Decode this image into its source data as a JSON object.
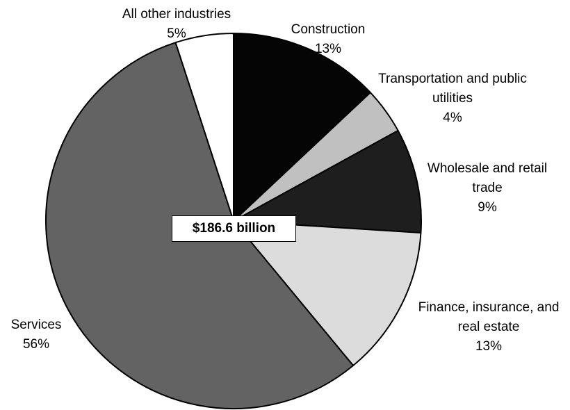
{
  "chart_data": {
    "type": "pie",
    "center_label": "$186.6 billion",
    "start_angle_deg": 0,
    "direction": "clockwise",
    "slices": [
      {
        "label_lines": [
          "Construction"
        ],
        "percent_text": "13%",
        "value": 13,
        "color": "#050505"
      },
      {
        "label_lines": [
          "Transportation and public",
          "utilities"
        ],
        "percent_text": "4%",
        "value": 4,
        "color": "#c0c0c0"
      },
      {
        "label_lines": [
          "Wholesale and retail",
          "trade"
        ],
        "percent_text": "9%",
        "value": 9,
        "color": "#1e1e1e"
      },
      {
        "label_lines": [
          "Finance, insurance, and",
          "real estate"
        ],
        "percent_text": "13%",
        "value": 13,
        "color": "#dcdcdc"
      },
      {
        "label_lines": [
          "Services"
        ],
        "percent_text": "56%",
        "value": 56,
        "color": "#636363"
      },
      {
        "label_lines": [
          "All other industries"
        ],
        "percent_text": "5%",
        "value": 5,
        "color": "#ffffff"
      }
    ]
  }
}
